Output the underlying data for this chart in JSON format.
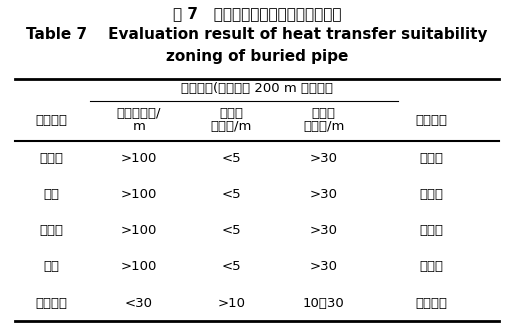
{
  "title_cn": "表 7   地埋管换热适宜性分区评价结果",
  "title_en_line1": "Table 7    Evaluation result of heat transfer suitability",
  "title_en_line2": "zoning of buried pipe",
  "group_header": "分区指标(地表以下 200 m 范围内）",
  "col_headers_line1": [
    "海岛名称",
    "第四系厚度/",
    "卵石层",
    "含水层",
    "评价结果"
  ],
  "col_headers_line2": [
    "",
    "m",
    "总厚度/m",
    "总厚度/m",
    ""
  ],
  "rows": [
    [
      "菩提岛",
      ">100",
      "<5",
      ">30",
      "适宜区"
    ],
    [
      "月岛",
      ">100",
      "<5",
      ">30",
      "适宜区"
    ],
    [
      "祥云岛",
      ">100",
      "<5",
      ">30",
      "适宜区"
    ],
    [
      "龙岛",
      ">100",
      "<5",
      ">30",
      "适宜区"
    ],
    [
      "石河南岛",
      "<30",
      ">10",
      "10～30",
      "较适宜区"
    ]
  ],
  "bg_color": "#ffffff",
  "text_color": "#000000",
  "title_cn_fontsize": 11,
  "title_en_fontsize": 11,
  "table_fontsize": 9.5
}
